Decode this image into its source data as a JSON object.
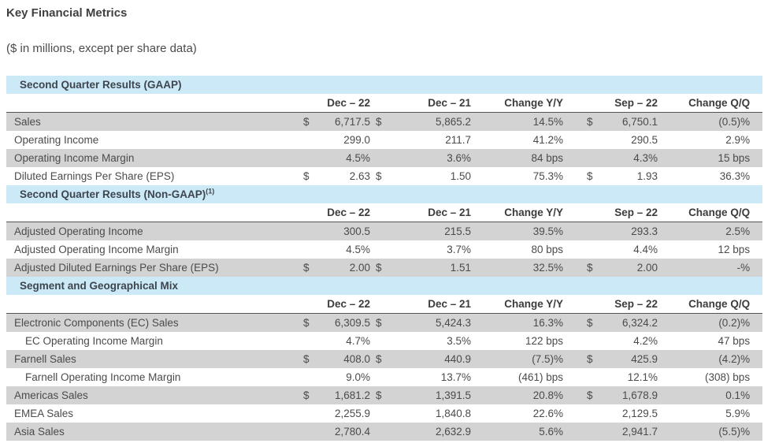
{
  "page": {
    "title": "Key Financial Metrics",
    "subtitle": "($ in millions, except per share data)"
  },
  "colors": {
    "section_header_bg": "#cce9f8",
    "alt_row_bg": "#d3d3d3",
    "header_rule": "#555555",
    "text": "#4b4b4b"
  },
  "table": {
    "columns": [
      "Dec – 22",
      "Dec – 21",
      "Change Y/Y",
      "Sep – 22",
      "Change Q/Q"
    ],
    "sections": [
      {
        "title": "Second Quarter Results (GAAP)",
        "footnote": "",
        "rows": [
          {
            "label": "Sales",
            "indent": false,
            "cells": [
              "$",
              "6,717.5",
              "$",
              "5,865.2",
              "14.5%",
              "$",
              "6,750.1",
              "(0.5)%"
            ]
          },
          {
            "label": "Operating Income",
            "indent": false,
            "cells": [
              "",
              "299.0",
              "",
              "211.7",
              "41.2%",
              "",
              "290.5",
              "2.9%"
            ]
          },
          {
            "label": "Operating Income Margin",
            "indent": false,
            "cells": [
              "",
              "4.5%",
              "",
              "3.6%",
              "84 bps",
              "",
              "4.3%",
              "15 bps"
            ]
          },
          {
            "label": "Diluted Earnings Per Share (EPS)",
            "indent": false,
            "cells": [
              "$",
              "2.63",
              "$",
              "1.50",
              "75.3%",
              "$",
              "1.93",
              "36.3%"
            ]
          }
        ]
      },
      {
        "title": "Second Quarter Results (Non-GAAP)",
        "footnote": "(1)",
        "rows": [
          {
            "label": "Adjusted Operating Income",
            "indent": false,
            "cells": [
              "",
              "300.5",
              "",
              "215.5",
              "39.5%",
              "",
              "293.3",
              "2.5%"
            ]
          },
          {
            "label": "Adjusted Operating Income Margin",
            "indent": false,
            "cells": [
              "",
              "4.5%",
              "",
              "3.7%",
              "80 bps",
              "",
              "4.4%",
              "12 bps"
            ]
          },
          {
            "label": "Adjusted Diluted Earnings Per Share (EPS)",
            "indent": false,
            "cells": [
              "$",
              "2.00",
              "$",
              "1.51",
              "32.5%",
              "$",
              "2.00",
              "-%"
            ]
          }
        ]
      },
      {
        "title": "Segment and Geographical Mix",
        "footnote": "",
        "rows": [
          {
            "label": "Electronic Components (EC) Sales",
            "indent": false,
            "cells": [
              "$",
              "6,309.5",
              "$",
              "5,424.3",
              "16.3%",
              "$",
              "6,324.2",
              "(0.2)%"
            ]
          },
          {
            "label": "EC Operating Income Margin",
            "indent": true,
            "cells": [
              "",
              "4.7%",
              "",
              "3.5%",
              "122 bps",
              "",
              "4.2%",
              "47 bps"
            ]
          },
          {
            "label": "Farnell Sales",
            "indent": false,
            "cells": [
              "$",
              "408.0",
              "$",
              "440.9",
              "(7.5)%",
              "$",
              "425.9",
              "(4.2)%"
            ]
          },
          {
            "label": "Farnell Operating Income Margin",
            "indent": true,
            "cells": [
              "",
              "9.0%",
              "",
              "13.7%",
              "(461) bps",
              "",
              "12.1%",
              "(308) bps"
            ]
          },
          {
            "label": "Americas Sales",
            "indent": false,
            "cells": [
              "$",
              "1,681.2",
              "$",
              "1,391.5",
              "20.8%",
              "$",
              "1,678.9",
              "0.1%"
            ]
          },
          {
            "label": "EMEA Sales",
            "indent": false,
            "cells": [
              "",
              "2,255.9",
              "",
              "1,840.8",
              "22.6%",
              "",
              "2,129.5",
              "5.9%"
            ]
          },
          {
            "label": "Asia Sales",
            "indent": false,
            "cells": [
              "",
              "2,780.4",
              "",
              "2,632.9",
              "5.6%",
              "",
              "2,941.7",
              "(5.5)%"
            ]
          }
        ]
      }
    ]
  }
}
